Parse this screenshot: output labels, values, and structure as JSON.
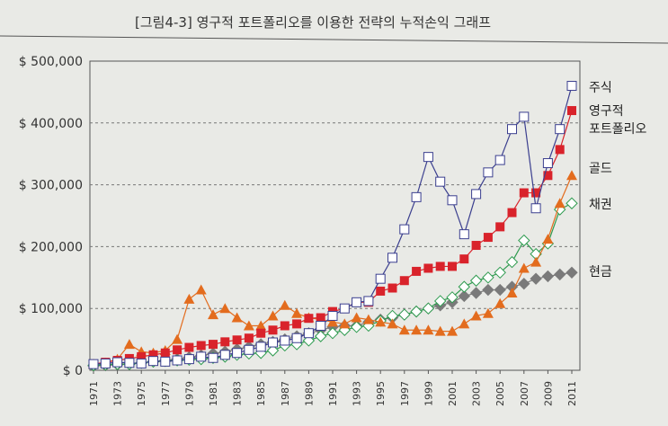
{
  "chart_data": {
    "type": "line",
    "title": "[그림4-3] 영구적 포트폴리오를 이용한 전략의 누적손익 그래프",
    "xlabel": "",
    "ylabel": "",
    "ylim": [
      0,
      500000
    ],
    "yticks": [
      "$ 0",
      "$ 100,000",
      "$ 200,000",
      "$ 300,000",
      "$ 400,000",
      "$ 500,000"
    ],
    "x": [
      1971,
      1972,
      1973,
      1974,
      1975,
      1976,
      1977,
      1978,
      1979,
      1980,
      1981,
      1982,
      1983,
      1984,
      1985,
      1986,
      1987,
      1988,
      1989,
      1990,
      1991,
      1992,
      1993,
      1994,
      1995,
      1996,
      1997,
      1998,
      1999,
      2000,
      2001,
      2002,
      2003,
      2004,
      2005,
      2006,
      2007,
      2008,
      2009,
      2010,
      2011
    ],
    "xticks": [
      "1971",
      "1973",
      "1975",
      "1977",
      "1979",
      "1981",
      "1983",
      "1985",
      "1987",
      "1989",
      "1991",
      "1993",
      "1995",
      "1997",
      "1999",
      "2001",
      "2003",
      "2005",
      "2007",
      "2009",
      "2011"
    ],
    "grid": "horizontal dashed",
    "legend": "right, labels at line ends",
    "series": [
      {
        "name": "주식",
        "color": "#3b3f8f",
        "marker": "open-square",
        "values": [
          10000,
          11000,
          13000,
          12000,
          11000,
          15000,
          14000,
          16000,
          18000,
          22000,
          20000,
          25000,
          28000,
          33000,
          38000,
          45000,
          48000,
          52000,
          60000,
          72000,
          88000,
          100000,
          110000,
          112000,
          148000,
          182000,
          228000,
          280000,
          345000,
          305000,
          275000,
          220000,
          285000,
          320000,
          340000,
          390000,
          410000,
          262000,
          335000,
          390000,
          460000
        ]
      },
      {
        "name": "영구적 포트폴리오",
        "color": "#d9232b",
        "marker": "filled-square",
        "values": [
          10000,
          13000,
          16000,
          19000,
          22000,
          25000,
          28000,
          33000,
          37000,
          40000,
          42000,
          46000,
          49000,
          52000,
          60000,
          65000,
          72000,
          75000,
          84000,
          85000,
          95000,
          100000,
          110000,
          110000,
          128000,
          133000,
          145000,
          160000,
          165000,
          168000,
          168000,
          180000,
          202000,
          215000,
          232000,
          255000,
          287000,
          287000,
          315000,
          357000,
          420000
        ]
      },
      {
        "name": "골드",
        "color": "#e36c1e",
        "marker": "filled-triangle",
        "values": [
          10000,
          12000,
          18000,
          42000,
          30000,
          28000,
          32000,
          50000,
          115000,
          130000,
          90000,
          100000,
          85000,
          72000,
          72000,
          88000,
          105000,
          92000,
          85000,
          82000,
          78000,
          75000,
          85000,
          82000,
          78000,
          75000,
          65000,
          65000,
          65000,
          63000,
          63000,
          75000,
          88000,
          92000,
          108000,
          125000,
          165000,
          175000,
          212000,
          270000,
          315000
        ]
      },
      {
        "name": "채권",
        "color": "#2e9b4f",
        "marker": "open-diamond",
        "values": [
          8000,
          9000,
          10000,
          10000,
          12000,
          14000,
          15000,
          16000,
          17000,
          18000,
          20000,
          22000,
          25000,
          27000,
          28000,
          32000,
          40000,
          42000,
          48000,
          55000,
          60000,
          65000,
          70000,
          72000,
          80000,
          88000,
          90000,
          95000,
          100000,
          112000,
          118000,
          135000,
          145000,
          150000,
          158000,
          175000,
          210000,
          188000,
          205000,
          260000,
          270000
        ]
      },
      {
        "name": "현금",
        "color": "#7a7a7a",
        "marker": "filled-diamond",
        "values": [
          7000,
          8000,
          9000,
          10000,
          12000,
          14000,
          16000,
          18000,
          21000,
          24000,
          27000,
          30000,
          34000,
          38000,
          42000,
          46000,
          50000,
          55000,
          60000,
          65000,
          70000,
          72000,
          72000,
          78000,
          82000,
          85000,
          90000,
          95000,
          100000,
          105000,
          110000,
          120000,
          125000,
          130000,
          130000,
          135000,
          140000,
          148000,
          152000,
          155000,
          158000
        ]
      }
    ]
  }
}
